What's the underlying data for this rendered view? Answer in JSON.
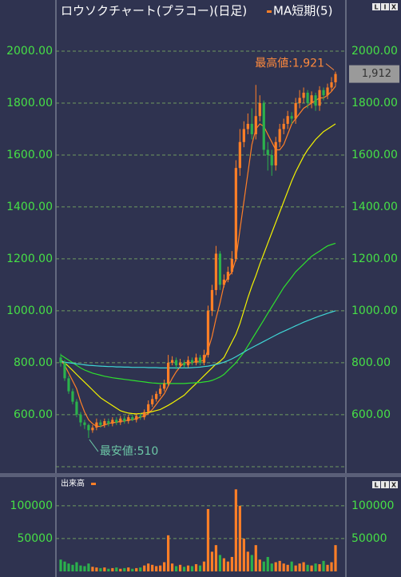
{
  "chart_data": [
    {
      "type": "candlestick",
      "title": "ロウソクチャート(プラコー)(日足)",
      "buttons": [
        "L",
        "I",
        "X"
      ],
      "up_color": "#ff7f27",
      "down_color": "#2bb14c",
      "open": [
        820,
        800,
        740,
        690,
        650,
        600,
        570,
        560,
        540,
        550,
        570,
        560,
        575,
        565,
        580,
        570,
        585,
        575,
        590,
        580,
        595,
        590,
        610,
        640,
        660,
        680,
        700,
        720,
        800,
        810,
        790,
        800,
        790,
        810,
        800,
        820,
        800,
        830,
        1000,
        1080,
        1220,
        1100,
        1120,
        1150,
        1200,
        1550,
        1650,
        1700,
        1720,
        1680,
        1750,
        1800,
        1620,
        1600,
        1560,
        1650,
        1700,
        1720,
        1750,
        1740,
        1800,
        1820,
        1840,
        1800,
        1830,
        1790,
        1850,
        1830,
        1860,
        1880
      ],
      "high": [
        835,
        810,
        750,
        700,
        660,
        610,
        580,
        565,
        560,
        585,
        580,
        585,
        585,
        590,
        590,
        595,
        595,
        600,
        600,
        605,
        605,
        620,
        655,
        675,
        690,
        715,
        735,
        830,
        825,
        820,
        815,
        810,
        825,
        820,
        835,
        830,
        850,
        1020,
        1100,
        1250,
        1230,
        1140,
        1170,
        1230,
        1580,
        1700,
        1730,
        1760,
        1780,
        1870,
        1830,
        1810,
        1650,
        1620,
        1670,
        1720,
        1740,
        1770,
        1765,
        1820,
        1850,
        1860,
        1850,
        1845,
        1840,
        1865,
        1860,
        1875,
        1900,
        1921
      ],
      "low": [
        785,
        730,
        680,
        640,
        590,
        555,
        545,
        510,
        530,
        540,
        550,
        550,
        555,
        555,
        560,
        560,
        565,
        565,
        575,
        570,
        580,
        580,
        600,
        630,
        650,
        670,
        690,
        710,
        790,
        775,
        780,
        780,
        780,
        790,
        790,
        790,
        790,
        820,
        980,
        1060,
        1080,
        1090,
        1110,
        1140,
        1190,
        1520,
        1630,
        1680,
        1660,
        1660,
        1730,
        1600,
        1540,
        1520,
        1540,
        1630,
        1680,
        1700,
        1720,
        1720,
        1780,
        1800,
        1780,
        1780,
        1770,
        1770,
        1810,
        1815,
        1845,
        1865
      ],
      "close": [
        800,
        740,
        690,
        650,
        600,
        570,
        560,
        540,
        550,
        570,
        560,
        575,
        565,
        580,
        570,
        585,
        575,
        590,
        580,
        595,
        590,
        610,
        640,
        660,
        680,
        700,
        720,
        800,
        810,
        790,
        800,
        790,
        810,
        800,
        820,
        800,
        830,
        1000,
        1080,
        1220,
        1100,
        1120,
        1150,
        1200,
        1550,
        1650,
        1700,
        1720,
        1680,
        1750,
        1800,
        1620,
        1600,
        1560,
        1650,
        1700,
        1720,
        1750,
        1740,
        1800,
        1820,
        1840,
        1800,
        1830,
        1790,
        1850,
        1830,
        1860,
        1880,
        1912
      ],
      "series": [
        {
          "name": "MA短期(5)",
          "color": "#ff7f27",
          "values": [
            810,
            790,
            760,
            730,
            700,
            650,
            610,
            580,
            565,
            555,
            555,
            560,
            565,
            570,
            570,
            575,
            575,
            580,
            580,
            585,
            590,
            595,
            605,
            620,
            640,
            660,
            680,
            710,
            740,
            765,
            785,
            800,
            800,
            800,
            805,
            805,
            810,
            850,
            900,
            970,
            1030,
            1100,
            1130,
            1150,
            1200,
            1310,
            1420,
            1530,
            1640,
            1700,
            1720,
            1710,
            1680,
            1650,
            1620,
            1620,
            1640,
            1680,
            1720,
            1740,
            1760,
            1780,
            1790,
            1800,
            1810,
            1820,
            1820,
            1830,
            1845,
            1865
          ]
        },
        {
          "color": "#f2f200",
          "values": [
            810,
            800,
            785,
            770,
            755,
            740,
            725,
            710,
            695,
            680,
            665,
            655,
            645,
            635,
            625,
            615,
            610,
            606,
            604,
            603,
            604,
            606,
            608,
            612,
            616,
            620,
            628,
            636,
            645,
            655,
            665,
            675,
            690,
            705,
            720,
            735,
            750,
            765,
            780,
            795,
            805,
            820,
            850,
            880,
            910,
            950,
            1000,
            1050,
            1095,
            1135,
            1180,
            1220,
            1260,
            1300,
            1340,
            1380,
            1420,
            1460,
            1500,
            1535,
            1565,
            1595,
            1620,
            1640,
            1660,
            1675,
            1690,
            1700,
            1710,
            1720
          ]
        },
        {
          "color": "#2ee02e",
          "values": [
            830,
            820,
            810,
            800,
            790,
            780,
            772,
            766,
            760,
            756,
            752,
            748,
            745,
            742,
            740,
            738,
            736,
            734,
            732,
            730,
            728,
            726,
            724,
            722,
            721,
            720,
            720,
            720,
            720,
            720,
            720,
            720,
            721,
            722,
            723,
            724,
            726,
            728,
            732,
            738,
            745,
            755,
            770,
            785,
            800,
            820,
            840,
            865,
            890,
            915,
            940,
            965,
            990,
            1015,
            1040,
            1065,
            1090,
            1110,
            1130,
            1150,
            1165,
            1180,
            1195,
            1210,
            1220,
            1230,
            1240,
            1250,
            1255,
            1260
          ]
        },
        {
          "color": "#3fd6d6",
          "values": [
            805,
            802,
            800,
            798,
            796,
            794,
            792,
            790,
            789,
            788,
            787,
            786,
            785,
            785,
            784,
            784,
            783,
            783,
            782,
            782,
            782,
            782,
            781,
            781,
            781,
            780,
            780,
            780,
            780,
            780,
            780,
            780,
            780,
            781,
            782,
            783,
            785,
            787,
            790,
            793,
            797,
            802,
            808,
            815,
            823,
            832,
            841,
            850,
            858,
            866,
            874,
            882,
            890,
            898,
            906,
            914,
            921,
            928,
            935,
            942,
            949,
            956,
            962,
            968,
            974,
            980,
            985,
            990,
            995,
            1000
          ]
        }
      ],
      "ylim": [
        381,
        2197
      ],
      "yticks": [
        {
          "value": 600,
          "label": "600.00"
        },
        {
          "value": 800,
          "label": "800.00"
        },
        {
          "value": 1000,
          "label": "1000.00"
        },
        {
          "value": 1200,
          "label": "1200.00"
        },
        {
          "value": 1400,
          "label": "1400.00"
        },
        {
          "value": 1600,
          "label": "1600.00"
        },
        {
          "value": 1800,
          "label": "1800.00"
        },
        {
          "value": 2000,
          "label": "2000.00"
        }
      ],
      "grid": true,
      "annotations": [
        {
          "text": "最高値:1,921",
          "value": 1921,
          "color": "#ff8a3d"
        },
        {
          "text": "最安値:510",
          "value": 510,
          "color": "#6cc7a6"
        }
      ],
      "last_price": {
        "label": "1,912",
        "value": 1912
      }
    },
    {
      "type": "bar",
      "name": "出来高",
      "color": "#ff7f27",
      "buttons": [
        "L",
        "I",
        "X"
      ],
      "up_color": "#ff7f27",
      "down_color": "#2bb14c",
      "values": [
        18000,
        15000,
        12000,
        10000,
        14000,
        9000,
        8000,
        12000,
        7000,
        6000,
        5000,
        6000,
        4000,
        5000,
        6000,
        4000,
        5000,
        6000,
        4000,
        5000,
        6000,
        9000,
        12000,
        10000,
        8000,
        9000,
        14000,
        55000,
        12000,
        8000,
        10000,
        7000,
        9000,
        8000,
        11000,
        9000,
        15000,
        95000,
        30000,
        40000,
        25000,
        20000,
        15000,
        22000,
        125000,
        100000,
        50000,
        30000,
        25000,
        40000,
        18000,
        15000,
        22000,
        12000,
        14000,
        16000,
        12000,
        10000,
        15000,
        9000,
        12000,
        14000,
        10000,
        9000,
        12000,
        11000,
        16000,
        10000,
        14000,
        40000
      ],
      "ylim": [
        0,
        140000
      ],
      "yticks": [
        50000,
        100000
      ],
      "grid": true
    }
  ]
}
